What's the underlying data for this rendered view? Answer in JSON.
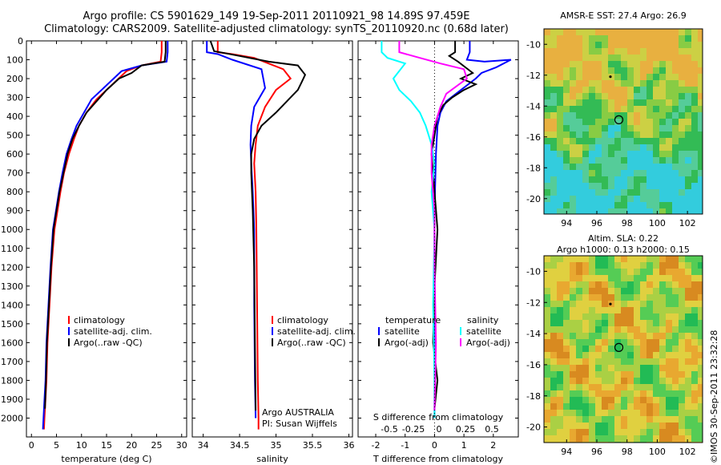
{
  "header": {
    "line1": "Argo profile: CS 5901629_149 19-Sep-2011 20110921_98 14.89S 97.459E",
    "line2": "Climatology: CARS2009. Satellite-adjusted climatology: synTS_20110920.nc (0.68d later)"
  },
  "colors": {
    "climatology": "#ff0000",
    "satellite": "#0000ff",
    "argo": "#000000",
    "salinity_satellite": "#00ffff",
    "salinity_argo": "#ff00ff"
  },
  "depth_axis": {
    "ylim": [
      0,
      2100
    ],
    "ticks": [
      "0",
      "100",
      "200",
      "300",
      "400",
      "500",
      "600",
      "700",
      "800",
      "900",
      "1000",
      "1100",
      "1200",
      "1300",
      "1400",
      "1500",
      "1600",
      "1700",
      "1800",
      "1900",
      "2000"
    ]
  },
  "chart_data": [
    {
      "type": "line",
      "name": "temperature",
      "xlabel": "temperature (deg C)",
      "xlim": [
        -1,
        31
      ],
      "xticks": [
        "0",
        "5",
        "10",
        "15",
        "20",
        "25",
        "30"
      ],
      "legend": [
        "climatology",
        "satellite-adj. clim.",
        "Argo(..raw -QC)"
      ],
      "series": [
        {
          "name": "climatology",
          "color": "#ff0000",
          "x": [
            26.0,
            26.0,
            25.8,
            22,
            19,
            17,
            15,
            13,
            11,
            9.5,
            8.5,
            7.5,
            6.5,
            5.8,
            5.2,
            4.6,
            4.0,
            3.6,
            3.2,
            3.0,
            2.8,
            2.6,
            2.5
          ],
          "y": [
            0,
            60,
            110,
            130,
            160,
            210,
            260,
            310,
            380,
            450,
            520,
            600,
            700,
            800,
            900,
            1000,
            1200,
            1400,
            1600,
            1800,
            1900,
            2000,
            2060
          ]
        },
        {
          "name": "satellite-adj. clim.",
          "color": "#0000ff",
          "x": [
            27.2,
            27.2,
            27.0,
            22,
            18,
            16,
            14,
            12,
            10.5,
            9,
            8,
            7,
            6.2,
            5.5,
            4.9,
            4.3,
            3.8,
            3.4,
            3.0,
            2.8,
            2.6,
            2.4,
            2.3
          ],
          "y": [
            0,
            60,
            110,
            130,
            160,
            210,
            260,
            310,
            380,
            450,
            520,
            600,
            700,
            800,
            900,
            1000,
            1200,
            1400,
            1600,
            1800,
            1900,
            2000,
            2060
          ]
        },
        {
          "name": "Argo(..raw -QC)",
          "color": "#000000",
          "x": [
            26.8,
            26.8,
            26.6,
            22,
            20,
            17.5,
            15,
            13,
            11,
            9.5,
            8.2,
            7.2,
            6.4,
            5.6,
            5.0,
            4.4,
            3.9,
            3.5,
            3.1,
            2.9,
            2.7
          ],
          "y": [
            0,
            60,
            110,
            130,
            170,
            200,
            260,
            320,
            380,
            450,
            520,
            600,
            700,
            800,
            900,
            1000,
            1200,
            1400,
            1600,
            1800,
            1950
          ]
        }
      ]
    },
    {
      "type": "line",
      "name": "salinity",
      "xlabel": "salinity",
      "xlim": [
        33.85,
        36.05
      ],
      "xticks": [
        "34",
        "34.5",
        "35",
        "35.5",
        "36"
      ],
      "legend": [
        "climatology",
        "satellite-adj. clim.",
        "Argo(..raw -QC)"
      ],
      "annotation": [
        "Argo AUSTRALIA",
        "PI: Susan Wijffels"
      ],
      "series": [
        {
          "name": "climatology",
          "color": "#ff0000",
          "x": [
            34.2,
            34.2,
            34.4,
            34.7,
            35.1,
            35.2,
            35.0,
            34.85,
            34.75,
            34.72,
            34.7,
            34.72,
            34.73,
            34.74,
            34.75,
            34.76,
            34.76
          ],
          "y": [
            0,
            60,
            70,
            90,
            150,
            200,
            260,
            350,
            450,
            550,
            650,
            800,
            1000,
            1400,
            1800,
            2000,
            2060
          ]
        },
        {
          "name": "satellite-adj. clim.",
          "color": "#0000ff",
          "x": [
            34.05,
            34.05,
            34.2,
            34.4,
            34.8,
            34.85,
            34.7,
            34.66,
            34.65,
            34.66,
            34.68,
            34.7,
            34.7,
            34.71,
            34.72
          ],
          "y": [
            0,
            60,
            70,
            100,
            150,
            250,
            350,
            450,
            550,
            650,
            800,
            1000,
            1400,
            1800,
            2000
          ]
        },
        {
          "name": "Argo(..raw -QC)",
          "color": "#000000",
          "x": [
            34.1,
            34.15,
            34.3,
            34.5,
            34.9,
            35.3,
            35.4,
            35.35,
            35.3,
            35.2,
            35.0,
            34.8,
            34.7,
            34.66,
            34.66,
            34.68,
            34.7,
            34.71,
            34.72
          ],
          "y": [
            0,
            55,
            65,
            80,
            110,
            130,
            180,
            220,
            260,
            300,
            380,
            450,
            520,
            600,
            700,
            900,
            1200,
            1600,
            1960
          ]
        }
      ]
    },
    {
      "type": "line",
      "name": "differences",
      "xlabel": "T difference from climatology",
      "xlabel_top": "S difference from climatology",
      "xlim": [
        -2.6,
        2.85
      ],
      "xticks": [
        "-2",
        "-1",
        "0",
        "1",
        "2"
      ],
      "s_ticks": [
        "-0.5",
        "-0.25",
        "0",
        "0.25",
        "0.5"
      ],
      "legend_headers": [
        "temperature",
        "salinity"
      ],
      "legend": [
        "satellite",
        "Argo(-adj)",
        "satellite",
        "Argo(-adj)"
      ],
      "series": [
        {
          "name": "satellite",
          "color": "#0000ff",
          "x": [
            1.2,
            1.2,
            1.1,
            1.7,
            2.6,
            2.1,
            1.6,
            1.4,
            0.9,
            0.4,
            0.2,
            0.1,
            0.05,
            0.0,
            0.0,
            0.0,
            0.0
          ],
          "y": [
            0,
            60,
            100,
            110,
            100,
            140,
            170,
            200,
            260,
            320,
            380,
            450,
            600,
            900,
            1400,
            1900,
            2000
          ]
        },
        {
          "name": "Argo(-adj)",
          "color": "#000000",
          "x": [
            0.7,
            0.7,
            0.5,
            0.8,
            1.3,
            0.9,
            1.4,
            1.0,
            0.6,
            0.3,
            0.1,
            0.0,
            -0.1,
            0.0,
            0.1,
            0.0,
            -0.05,
            0.1,
            0.0
          ],
          "y": [
            0,
            60,
            80,
            110,
            170,
            200,
            230,
            260,
            300,
            340,
            400,
            500,
            600,
            800,
            1000,
            1300,
            1600,
            1800,
            1950
          ]
        },
        {
          "name": "satellite",
          "color": "#00ffff",
          "x": [
            -1.8,
            -1.8,
            -1.6,
            -1.0,
            -1.4,
            -1.2,
            -0.8,
            -0.5,
            -0.3,
            -0.1,
            0.0,
            -0.1,
            0.0,
            -0.05,
            0.0,
            0.0
          ],
          "y": [
            0,
            60,
            90,
            120,
            200,
            260,
            320,
            380,
            450,
            550,
            650,
            800,
            1000,
            1400,
            1800,
            2000
          ]
        },
        {
          "name": "Argo(-adj)",
          "color": "#ff00ff",
          "x": [
            -1.2,
            -1.2,
            -0.5,
            0.2,
            1.0,
            1.1,
            0.4,
            0.2,
            0.0,
            -0.1,
            -0.1,
            0.0,
            0.0,
            0.05,
            0.0
          ],
          "y": [
            0,
            60,
            90,
            120,
            150,
            200,
            280,
            350,
            450,
            550,
            700,
            900,
            1200,
            1600,
            1960
          ]
        }
      ]
    },
    {
      "type": "heatmap",
      "name": "sst-map",
      "title": "AMSR-E SST: 27.4 Argo: 26.9",
      "xlim": [
        92.5,
        103
      ],
      "ylim": [
        -21,
        -9
      ],
      "xticks": [
        "94",
        "96",
        "98",
        "100",
        "102"
      ],
      "yticks": [
        "-10",
        "-12",
        "-14",
        "-16",
        "-18",
        "-20"
      ],
      "argo_position": {
        "lon": 97.459,
        "lat": -14.89
      },
      "previous_position": {
        "lon": 96.9,
        "lat": -12.1
      }
    },
    {
      "type": "heatmap",
      "name": "sla-map",
      "title": "Altim. SLA: 0.22",
      "subtitle": "Argo h1000: 0.13 h2000: 0.15",
      "xlim": [
        92.5,
        103
      ],
      "ylim": [
        -21,
        -9
      ],
      "xticks": [
        "94",
        "96",
        "98",
        "100",
        "102"
      ],
      "yticks": [
        "-10",
        "-12",
        "-14",
        "-16",
        "-18",
        "-20"
      ],
      "argo_position": {
        "lon": 97.459,
        "lat": -14.89
      },
      "previous_position": {
        "lon": 96.9,
        "lat": -12.1
      }
    }
  ],
  "stamp": "©IMOS 30-Sep-2011 23:32:28"
}
